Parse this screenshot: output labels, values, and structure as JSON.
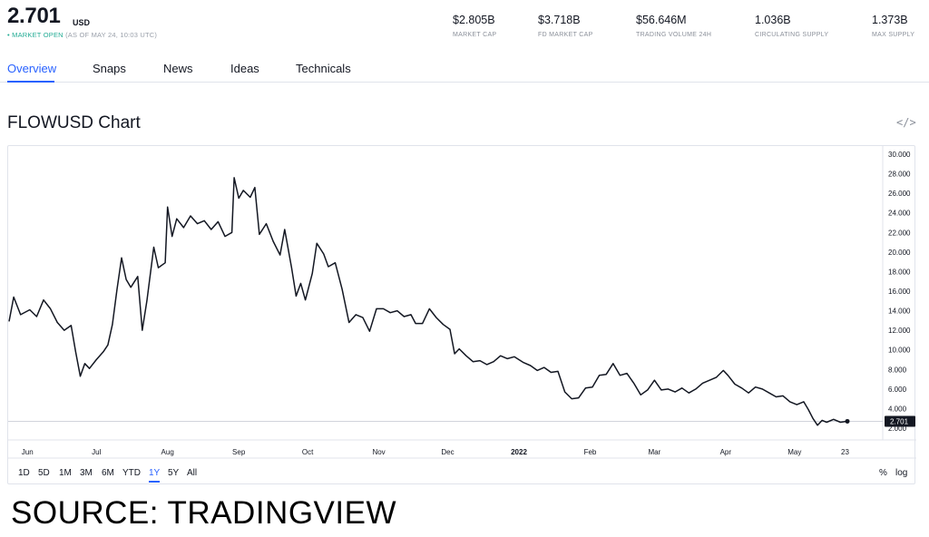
{
  "header": {
    "price": "2.701",
    "unit": "USD",
    "status_dot": "•",
    "status": "MARKET OPEN",
    "as_of": "(AS OF MAY 24, 10:03 UTC)"
  },
  "stats": [
    {
      "value": "$2.805B",
      "label": "MARKET CAP"
    },
    {
      "value": "$3.718B",
      "label": "FD MARKET CAP"
    },
    {
      "value": "$56.646M",
      "label": "TRADING VOLUME 24H"
    },
    {
      "value": "1.036B",
      "label": "CIRCULATING SUPPLY"
    },
    {
      "value": "1.373B",
      "label": "MAX SUPPLY"
    }
  ],
  "tabs": [
    {
      "label": "Overview",
      "active": true
    },
    {
      "label": "Snaps",
      "active": false
    },
    {
      "label": "News",
      "active": false
    },
    {
      "label": "Ideas",
      "active": false
    },
    {
      "label": "Technicals",
      "active": false
    }
  ],
  "embed_icon": "</>",
  "ranges": [
    {
      "label": "1D",
      "active": false
    },
    {
      "label": "5D",
      "active": false
    },
    {
      "label": "1M",
      "active": false
    },
    {
      "label": "3M",
      "active": false
    },
    {
      "label": "6M",
      "active": false
    },
    {
      "label": "YTD",
      "active": false
    },
    {
      "label": "1Y",
      "active": true
    },
    {
      "label": "5Y",
      "active": false
    },
    {
      "label": "All",
      "active": false
    }
  ],
  "scale_options": [
    "%",
    "log"
  ],
  "source": "SOURCE: TRADINGVIEW",
  "colors": {
    "accent": "#2962ff",
    "line": "#131722",
    "market_open": "#22ab94",
    "grid": "#e0e3eb"
  },
  "chart_data": {
    "type": "line",
    "title": "FLOWUSD Chart",
    "xlabel": "",
    "ylabel": "",
    "ylim": [
      1.0,
      30.5
    ],
    "y_ticks": [
      "30.000",
      "28.000",
      "26.000",
      "24.000",
      "22.000",
      "20.000",
      "18.000",
      "16.000",
      "14.000",
      "12.000",
      "10.000",
      "8.000",
      "6.000",
      "4.000",
      "2.000"
    ],
    "x_ticks": [
      {
        "label": "Jun",
        "date": "2021-06-01",
        "bold": false
      },
      {
        "label": "Jul",
        "date": "2021-07-01",
        "bold": false
      },
      {
        "label": "Aug",
        "date": "2021-08-01",
        "bold": false
      },
      {
        "label": "Sep",
        "date": "2021-09-01",
        "bold": false
      },
      {
        "label": "Oct",
        "date": "2021-10-01",
        "bold": false
      },
      {
        "label": "Nov",
        "date": "2021-11-01",
        "bold": false
      },
      {
        "label": "Dec",
        "date": "2021-12-01",
        "bold": false
      },
      {
        "label": "2022",
        "date": "2022-01-01",
        "bold": true
      },
      {
        "label": "Feb",
        "date": "2022-02-01",
        "bold": false
      },
      {
        "label": "Mar",
        "date": "2022-03-01",
        "bold": false
      },
      {
        "label": "Apr",
        "date": "2022-04-01",
        "bold": false
      },
      {
        "label": "May",
        "date": "2022-05-01",
        "bold": false
      },
      {
        "label": "23",
        "date": "2022-05-23",
        "bold": false
      }
    ],
    "last_value": 2.701,
    "last_value_label": "2.701",
    "grid": false,
    "legend": "none",
    "series": [
      {
        "points": [
          [
            "2021-05-24",
            12.9
          ],
          [
            "2021-05-26",
            15.4
          ],
          [
            "2021-05-29",
            13.6
          ],
          [
            "2021-06-02",
            14.1
          ],
          [
            "2021-06-05",
            13.4
          ],
          [
            "2021-06-08",
            15.1
          ],
          [
            "2021-06-11",
            14.2
          ],
          [
            "2021-06-14",
            12.8
          ],
          [
            "2021-06-17",
            12.0
          ],
          [
            "2021-06-20",
            12.5
          ],
          [
            "2021-06-22",
            9.8
          ],
          [
            "2021-06-24",
            7.3
          ],
          [
            "2021-06-26",
            8.6
          ],
          [
            "2021-06-28",
            8.1
          ],
          [
            "2021-07-01",
            9.0
          ],
          [
            "2021-07-04",
            9.8
          ],
          [
            "2021-07-06",
            10.5
          ],
          [
            "2021-07-08",
            12.6
          ],
          [
            "2021-07-10",
            16.2
          ],
          [
            "2021-07-12",
            19.4
          ],
          [
            "2021-07-14",
            17.2
          ],
          [
            "2021-07-16",
            16.4
          ],
          [
            "2021-07-19",
            17.5
          ],
          [
            "2021-07-21",
            12.0
          ],
          [
            "2021-07-23",
            15.0
          ],
          [
            "2021-07-26",
            20.5
          ],
          [
            "2021-07-28",
            18.4
          ],
          [
            "2021-07-31",
            18.9
          ],
          [
            "2021-08-01",
            24.6
          ],
          [
            "2021-08-03",
            21.6
          ],
          [
            "2021-08-05",
            23.4
          ],
          [
            "2021-08-08",
            22.5
          ],
          [
            "2021-08-11",
            23.7
          ],
          [
            "2021-08-14",
            22.9
          ],
          [
            "2021-08-17",
            23.2
          ],
          [
            "2021-08-20",
            22.3
          ],
          [
            "2021-08-23",
            23.1
          ],
          [
            "2021-08-26",
            21.6
          ],
          [
            "2021-08-29",
            22.0
          ],
          [
            "2021-08-30",
            27.6
          ],
          [
            "2021-09-01",
            25.5
          ],
          [
            "2021-09-03",
            26.3
          ],
          [
            "2021-09-06",
            25.6
          ],
          [
            "2021-09-08",
            26.6
          ],
          [
            "2021-09-10",
            21.8
          ],
          [
            "2021-09-13",
            22.9
          ],
          [
            "2021-09-16",
            21.1
          ],
          [
            "2021-09-19",
            19.7
          ],
          [
            "2021-09-21",
            22.3
          ],
          [
            "2021-09-24",
            18.4
          ],
          [
            "2021-09-26",
            15.5
          ],
          [
            "2021-09-28",
            16.8
          ],
          [
            "2021-09-30",
            15.1
          ],
          [
            "2021-10-03",
            17.8
          ],
          [
            "2021-10-05",
            20.9
          ],
          [
            "2021-10-08",
            19.8
          ],
          [
            "2021-10-10",
            18.5
          ],
          [
            "2021-10-13",
            18.9
          ],
          [
            "2021-10-16",
            16.2
          ],
          [
            "2021-10-19",
            12.8
          ],
          [
            "2021-10-22",
            13.6
          ],
          [
            "2021-10-25",
            13.3
          ],
          [
            "2021-10-28",
            11.9
          ],
          [
            "2021-10-31",
            14.2
          ],
          [
            "2021-11-03",
            14.2
          ],
          [
            "2021-11-06",
            13.8
          ],
          [
            "2021-11-09",
            14.0
          ],
          [
            "2021-11-12",
            13.4
          ],
          [
            "2021-11-15",
            13.6
          ],
          [
            "2021-11-17",
            12.7
          ],
          [
            "2021-11-20",
            12.7
          ],
          [
            "2021-11-23",
            14.2
          ],
          [
            "2021-11-26",
            13.3
          ],
          [
            "2021-11-29",
            12.6
          ],
          [
            "2021-12-02",
            12.1
          ],
          [
            "2021-12-04",
            9.6
          ],
          [
            "2021-12-06",
            10.1
          ],
          [
            "2021-12-09",
            9.4
          ],
          [
            "2021-12-12",
            8.8
          ],
          [
            "2021-12-15",
            8.9
          ],
          [
            "2021-12-18",
            8.5
          ],
          [
            "2021-12-21",
            8.8
          ],
          [
            "2021-12-24",
            9.4
          ],
          [
            "2021-12-27",
            9.1
          ],
          [
            "2021-12-30",
            9.3
          ],
          [
            "2022-01-03",
            8.7
          ],
          [
            "2022-01-06",
            8.4
          ],
          [
            "2022-01-09",
            7.9
          ],
          [
            "2022-01-12",
            8.2
          ],
          [
            "2022-01-15",
            7.7
          ],
          [
            "2022-01-18",
            7.8
          ],
          [
            "2022-01-21",
            5.7
          ],
          [
            "2022-01-24",
            5.0
          ],
          [
            "2022-01-27",
            5.1
          ],
          [
            "2022-01-30",
            6.1
          ],
          [
            "2022-02-02",
            6.2
          ],
          [
            "2022-02-05",
            7.4
          ],
          [
            "2022-02-08",
            7.5
          ],
          [
            "2022-02-11",
            8.6
          ],
          [
            "2022-02-14",
            7.4
          ],
          [
            "2022-02-17",
            7.6
          ],
          [
            "2022-02-20",
            6.6
          ],
          [
            "2022-02-23",
            5.4
          ],
          [
            "2022-02-26",
            5.9
          ],
          [
            "2022-03-01",
            6.9
          ],
          [
            "2022-03-04",
            5.9
          ],
          [
            "2022-03-07",
            6.0
          ],
          [
            "2022-03-10",
            5.7
          ],
          [
            "2022-03-13",
            6.1
          ],
          [
            "2022-03-16",
            5.6
          ],
          [
            "2022-03-19",
            6.0
          ],
          [
            "2022-03-22",
            6.6
          ],
          [
            "2022-03-25",
            6.9
          ],
          [
            "2022-03-28",
            7.2
          ],
          [
            "2022-03-31",
            7.9
          ],
          [
            "2022-04-02",
            7.4
          ],
          [
            "2022-04-05",
            6.5
          ],
          [
            "2022-04-08",
            6.1
          ],
          [
            "2022-04-11",
            5.6
          ],
          [
            "2022-04-14",
            6.2
          ],
          [
            "2022-04-17",
            6.0
          ],
          [
            "2022-04-20",
            5.6
          ],
          [
            "2022-04-23",
            5.2
          ],
          [
            "2022-04-26",
            5.3
          ],
          [
            "2022-04-29",
            4.7
          ],
          [
            "2022-05-02",
            4.4
          ],
          [
            "2022-05-05",
            4.7
          ],
          [
            "2022-05-07",
            3.9
          ],
          [
            "2022-05-09",
            3.0
          ],
          [
            "2022-05-11",
            2.3
          ],
          [
            "2022-05-13",
            2.8
          ],
          [
            "2022-05-15",
            2.6
          ],
          [
            "2022-05-18",
            2.9
          ],
          [
            "2022-05-21",
            2.6
          ],
          [
            "2022-05-24",
            2.701
          ]
        ]
      }
    ]
  }
}
